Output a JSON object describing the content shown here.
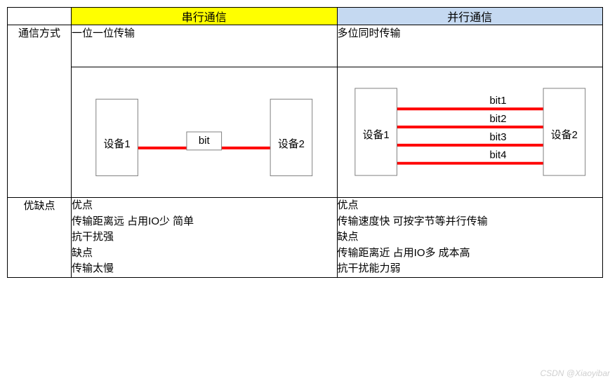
{
  "headers": {
    "serial": {
      "label": "串行通信",
      "bg": "#ffff00"
    },
    "parallel": {
      "label": "并行通信",
      "bg": "#c5d9f1"
    }
  },
  "rows": {
    "method": {
      "label": "通信方式",
      "serial_desc": "一位一位传输",
      "parallel_desc": "多位同时传输"
    },
    "pros": {
      "label": "优缺点",
      "serial": "优点\n传输距离远 占用IO少  简单\n抗干扰强\n缺点\n传输太慢",
      "parallel": "优点\n传输速度快  可按字节等并行传输\n缺点\n传输距离近 占用IO多  成本高\n抗干扰能力弱"
    }
  },
  "diagram": {
    "serial": {
      "device1": "设备1",
      "device2": "设备2",
      "bit_label": "bit",
      "box_stroke": "#808080",
      "box_fill": "#ffffff",
      "line_color": "#ff0000",
      "line_width": 4,
      "text_color": "#000000",
      "font_size": 15,
      "dev_box_w": 60,
      "dev_box_h": 110,
      "bit_box_w": 50,
      "bit_box_h": 26
    },
    "parallel": {
      "device1": "设备1",
      "device2": "设备2",
      "bits": [
        "bit1",
        "bit2",
        "bit3",
        "bit4"
      ],
      "box_stroke": "#808080",
      "box_fill": "#ffffff",
      "line_color": "#ff0000",
      "line_width": 4,
      "text_color": "#000000",
      "font_size": 15,
      "dev_box_w": 60,
      "dev_box_h": 125,
      "line_gap": 26
    }
  },
  "watermark": "CSDN @Xiaoyibar"
}
